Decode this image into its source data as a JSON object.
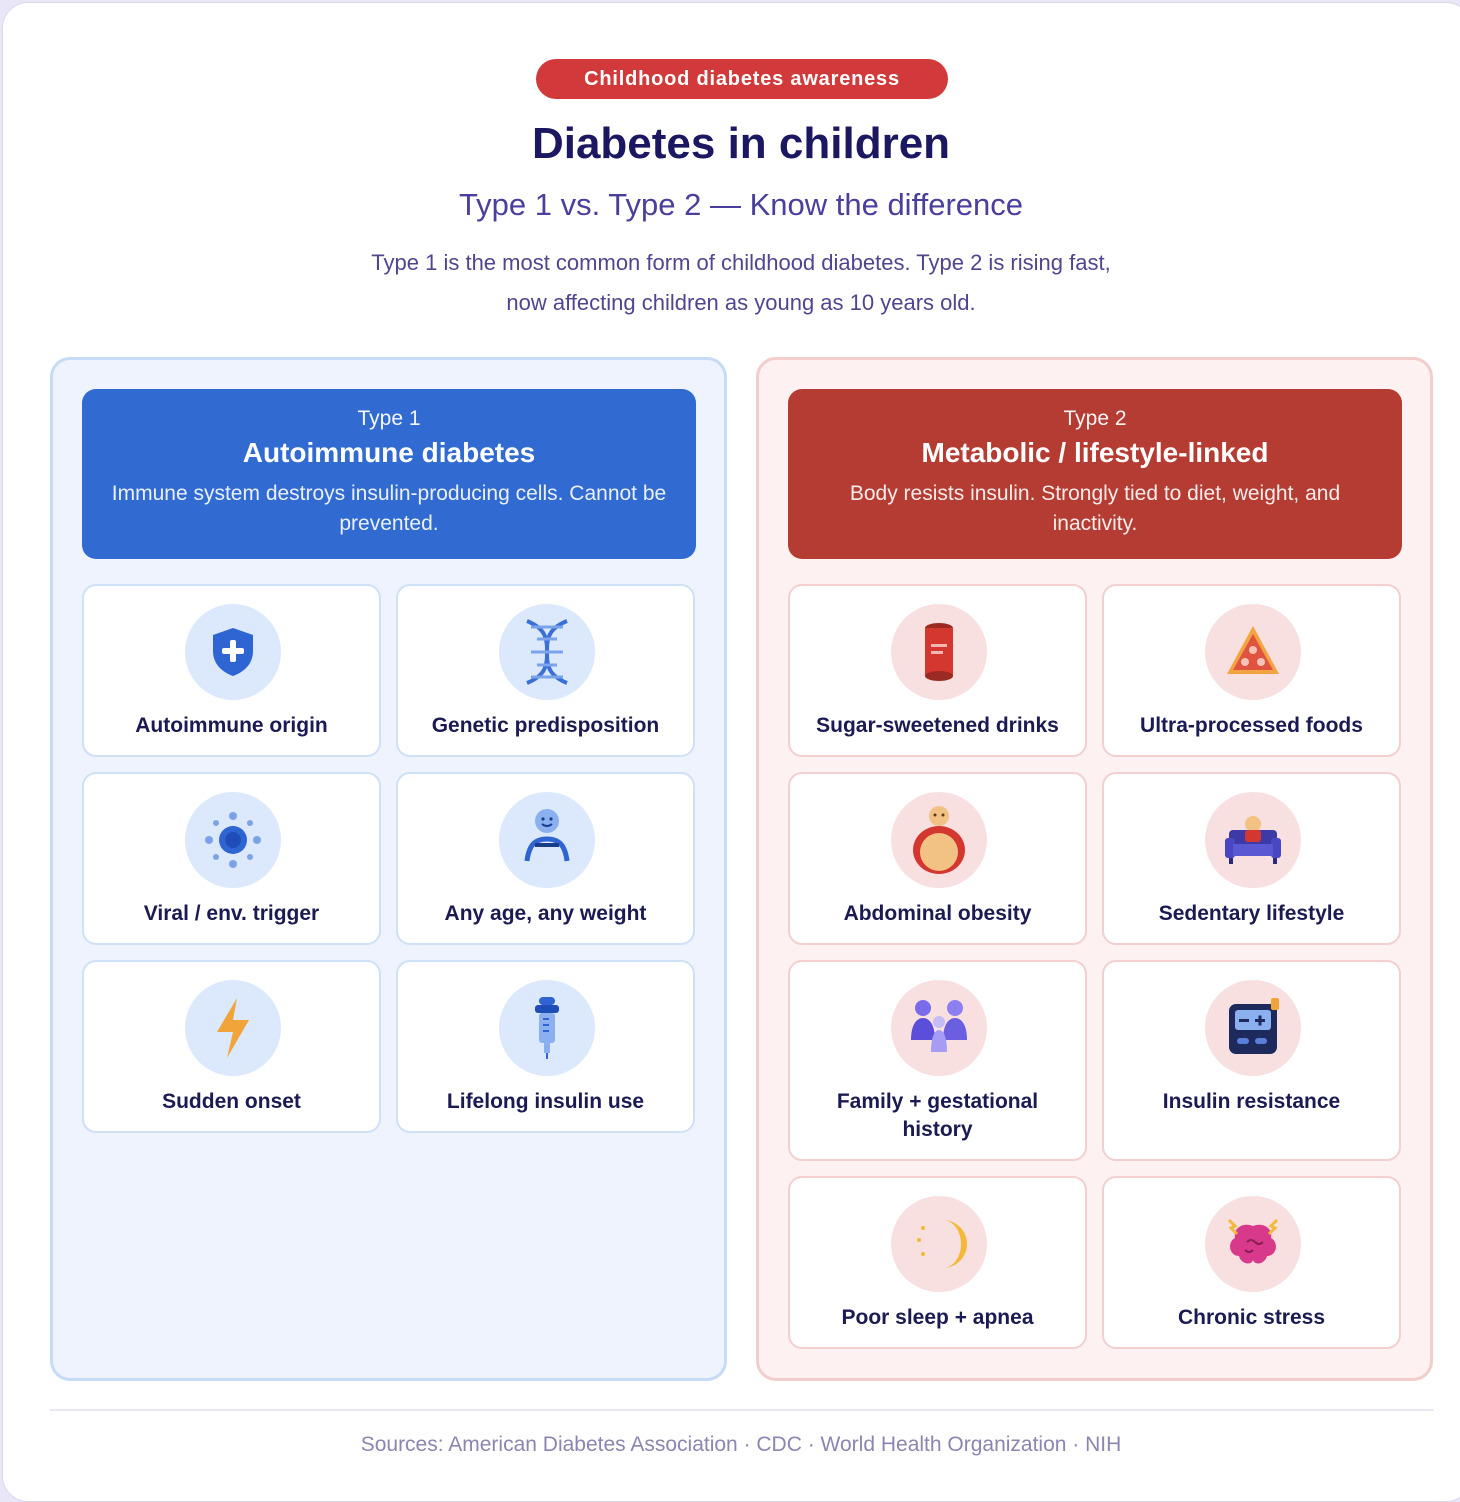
{
  "badge": "Childhood diabetes awareness",
  "title": "Diabetes in children",
  "subtitle": "Type 1 vs. Type 2 — Know the difference",
  "intro_line1": "Type 1 is the most common form of childhood diabetes. Type 2 is rising fast,",
  "intro_line2": "now affecting children as young as 10 years old.",
  "type1": {
    "kicker": "Type 1",
    "name": "Autoimmune diabetes",
    "description": "Immune system destroys insulin-producing cells. Cannot be prevented.",
    "accent": "#316bd2",
    "cards": [
      {
        "label": "Autoimmune origin",
        "icon": "shield-plus-icon"
      },
      {
        "label": "Genetic predisposition",
        "icon": "dna-icon"
      },
      {
        "label": "Viral / env. trigger",
        "icon": "virus-icon"
      },
      {
        "label": "Any age, any weight",
        "icon": "child-icon"
      },
      {
        "label": "Sudden onset",
        "icon": "lightning-icon"
      },
      {
        "label": "Lifelong insulin use",
        "icon": "insulin-pen-icon"
      }
    ]
  },
  "type2": {
    "kicker": "Type 2",
    "name": "Metabolic / lifestyle-linked",
    "description": "Body resists insulin. Strongly tied to diet, weight, and inactivity.",
    "accent": "#b53c33",
    "cards": [
      {
        "label": "Sugar-sweetened drinks",
        "icon": "soda-can-icon"
      },
      {
        "label": "Ultra-processed foods",
        "icon": "pizza-slice-icon"
      },
      {
        "label": "Abdominal obesity",
        "icon": "obesity-icon"
      },
      {
        "label": "Sedentary lifestyle",
        "icon": "couch-icon"
      },
      {
        "label": "Family + gestational history",
        "icon": "family-icon"
      },
      {
        "label": "Insulin resistance",
        "icon": "glucose-meter-icon"
      },
      {
        "label": "Poor sleep + apnea",
        "icon": "moon-icon"
      },
      {
        "label": "Chronic stress",
        "icon": "stressed-brain-icon"
      }
    ]
  },
  "sources": "Sources: American Diabetes Association · CDC · World Health Organization · NIH"
}
